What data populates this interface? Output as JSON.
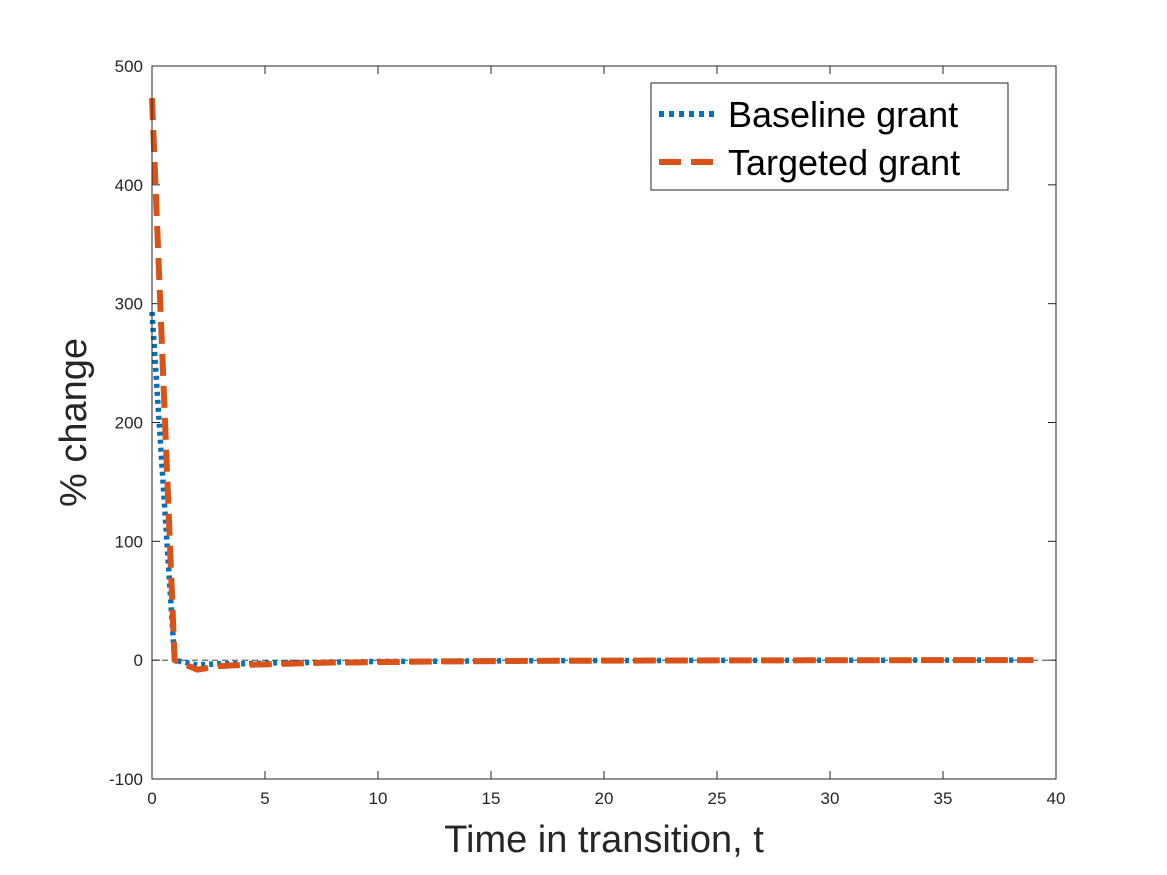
{
  "chart_data": {
    "type": "line",
    "title": "",
    "xlabel": "Time in transition, t",
    "ylabel": "% change",
    "xlim": [
      0,
      40
    ],
    "ylim": [
      -100,
      500
    ],
    "xticks": [
      0,
      5,
      10,
      15,
      20,
      25,
      30,
      35,
      40
    ],
    "yticks": [
      -100,
      0,
      100,
      200,
      300,
      400,
      500
    ],
    "grid": false,
    "zero_reference_line": true,
    "legend_position": "top-right",
    "series": [
      {
        "name": "Baseline grant",
        "color": "#0072BD",
        "line_style": "dotted",
        "x": [
          0,
          1,
          2,
          3,
          4,
          5,
          6,
          7,
          8,
          9,
          10,
          11,
          12,
          13,
          14,
          15,
          16,
          17,
          18,
          19,
          20,
          21,
          22,
          23,
          24,
          25,
          26,
          27,
          28,
          29,
          30,
          31,
          32,
          33,
          34,
          35,
          36,
          37,
          38,
          39
        ],
        "values": [
          293,
          0,
          -4,
          -3,
          -3,
          -2.5,
          -2,
          -2,
          -1.5,
          -1.5,
          -1,
          -1,
          -1,
          -0.8,
          -0.7,
          -0.6,
          -0.5,
          -0.5,
          -0.4,
          -0.4,
          -0.3,
          -0.3,
          -0.3,
          -0.2,
          -0.2,
          -0.2,
          -0.2,
          -0.1,
          -0.1,
          -0.1,
          -0.1,
          -0.1,
          -0.1,
          0,
          0,
          0,
          0,
          0,
          0,
          0
        ]
      },
      {
        "name": "Targeted grant",
        "color": "#D95319",
        "line_style": "dashed",
        "x": [
          0,
          1,
          2,
          3,
          4,
          5,
          6,
          7,
          8,
          9,
          10,
          11,
          12,
          13,
          14,
          15,
          16,
          17,
          18,
          19,
          20,
          21,
          22,
          23,
          24,
          25,
          26,
          27,
          28,
          29,
          30,
          31,
          32,
          33,
          34,
          35,
          36,
          37,
          38,
          39
        ],
        "values": [
          473,
          0,
          -8,
          -5,
          -4,
          -3.5,
          -3,
          -2.5,
          -2,
          -2,
          -1.5,
          -1.5,
          -1.2,
          -1,
          -1,
          -0.8,
          -0.7,
          -0.6,
          -0.5,
          -0.5,
          -0.4,
          -0.4,
          -0.3,
          -0.3,
          -0.3,
          -0.2,
          -0.2,
          -0.2,
          -0.2,
          -0.1,
          -0.1,
          -0.1,
          -0.1,
          -0.1,
          0,
          0,
          0,
          0,
          0,
          0
        ]
      }
    ]
  }
}
